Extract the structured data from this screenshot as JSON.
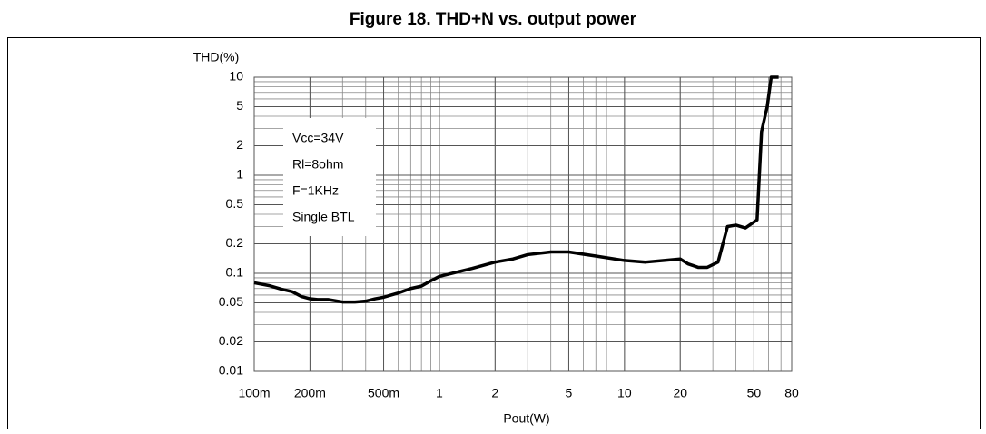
{
  "chart_data": {
    "type": "line",
    "title": "Figure 18. THD+N vs. output power",
    "y_label": "THD(%)",
    "x_label": "Pout(W)",
    "annotations": [
      "Vcc=34V",
      "Rl=8ohm",
      "F=1KHz",
      "Single BTL"
    ],
    "x_scale": "log",
    "y_scale": "log",
    "grid": true,
    "xlim": [
      0.1,
      80
    ],
    "ylim": [
      0.01,
      10
    ],
    "xticks": [
      {
        "value": 0.1,
        "label": "100m"
      },
      {
        "value": 0.2,
        "label": "200m"
      },
      {
        "value": 0.5,
        "label": "500m"
      },
      1,
      2,
      5,
      10,
      20,
      50,
      80
    ],
    "yticks": [
      0.01,
      0.02,
      0.05,
      0.1,
      0.2,
      0.5,
      1,
      2,
      5,
      10
    ],
    "series": [
      {
        "name": "THD+N",
        "color": "#000000",
        "x": [
          0.1,
          0.12,
          0.14,
          0.16,
          0.18,
          0.2,
          0.22,
          0.25,
          0.3,
          0.35,
          0.4,
          0.45,
          0.5,
          0.6,
          0.7,
          0.8,
          0.9,
          1,
          1.5,
          2,
          2.5,
          3,
          4,
          5,
          7,
          10,
          13,
          20,
          22,
          25,
          28,
          32,
          36,
          40,
          45,
          52,
          55,
          59,
          62,
          68
        ],
        "values": [
          0.08,
          0.075,
          0.069,
          0.065,
          0.058,
          0.055,
          0.054,
          0.054,
          0.051,
          0.051,
          0.052,
          0.055,
          0.057,
          0.063,
          0.07,
          0.074,
          0.084,
          0.093,
          0.112,
          0.13,
          0.14,
          0.155,
          0.165,
          0.165,
          0.15,
          0.135,
          0.13,
          0.14,
          0.125,
          0.115,
          0.115,
          0.13,
          0.3,
          0.31,
          0.29,
          0.35,
          2.8,
          5,
          10,
          10
        ]
      }
    ]
  }
}
